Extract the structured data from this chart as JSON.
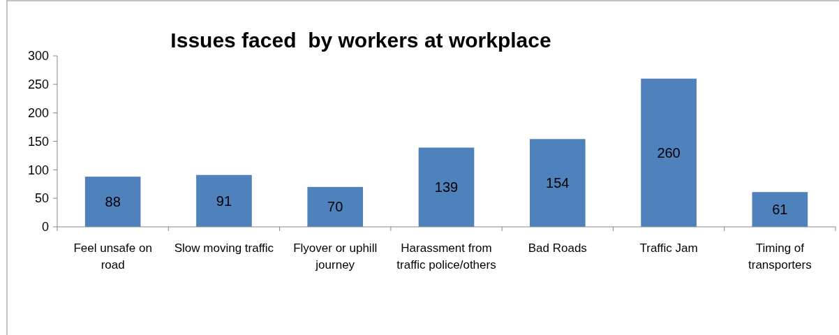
{
  "chart_data": {
    "type": "bar",
    "title": "Issues faced  by workers at workplace",
    "categories": [
      "Feel unsafe on road",
      "Slow moving traffic",
      "Flyover or uphill journey",
      "Harassment from traffic police/others",
      "Bad Roads",
      "Traffic Jam",
      "Timing of transporters"
    ],
    "values": [
      88,
      91,
      70,
      139,
      154,
      260,
      61
    ],
    "color": "#4f81bd",
    "ylim": [
      0,
      300
    ],
    "yticks": [
      0,
      50,
      100,
      150,
      200,
      250,
      300
    ],
    "data_labels": true,
    "grid": false
  }
}
